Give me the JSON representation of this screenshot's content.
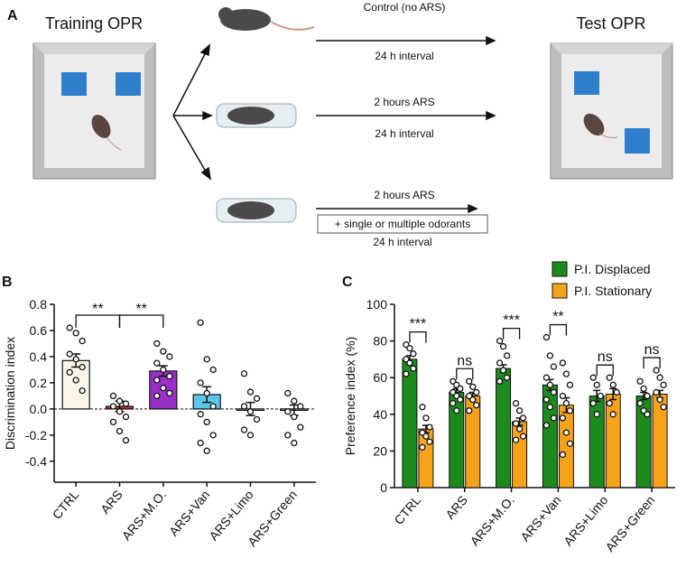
{
  "panel_a": {
    "label": "A",
    "training_title": "Training OPR",
    "test_title": "Test OPR",
    "conditions": [
      {
        "line1": "Control (no ARS)",
        "line2": "24 h interval"
      },
      {
        "line1": "2 hours ARS",
        "line2": "24 h interval"
      },
      {
        "line1": "2 hours ARS",
        "box": "+ single or multiple odorants",
        "line2": "24 h interval"
      }
    ]
  },
  "chart_data": [
    {
      "type": "bar",
      "panel_label": "B",
      "ylabel": "Discrimination index",
      "categories": [
        "CTRL",
        "ARS",
        "ARS+M.O.",
        "ARS+Van",
        "ARS+Limo",
        "ARS+Green"
      ],
      "values": [
        0.37,
        0.02,
        0.29,
        0.11,
        0.0,
        -0.01
      ],
      "errors": [
        0.05,
        0.04,
        0.04,
        0.06,
        0.05,
        0.04
      ],
      "colors": [
        "#fbf5e8",
        "#c0392b",
        "#9b30c8",
        "#5cc6ea",
        "#ffffff",
        "#ffffff"
      ],
      "points": [
        [
          0.62,
          0.58,
          0.52,
          0.42,
          0.38,
          0.32,
          0.28,
          0.22,
          0.14
        ],
        [
          0.1,
          0.06,
          0.04,
          0.02,
          -0.02,
          -0.06,
          -0.1,
          -0.17,
          -0.24
        ],
        [
          0.5,
          0.44,
          0.4,
          0.35,
          0.3,
          0.25,
          0.22,
          0.16,
          0.12,
          0.1
        ],
        [
          0.66,
          0.38,
          0.3,
          0.2,
          0.12,
          0.02,
          -0.04,
          -0.1,
          -0.2,
          -0.26,
          -0.32
        ],
        [
          0.27,
          0.13,
          0.08,
          0.02,
          -0.02,
          -0.08,
          -0.16,
          -0.2
        ],
        [
          0.12,
          0.06,
          0.02,
          -0.02,
          -0.06,
          -0.14,
          -0.2,
          -0.26
        ]
      ],
      "comparisons": [
        {
          "groups": [
            0,
            1
          ],
          "label": "**"
        },
        {
          "groups": [
            1,
            2
          ],
          "label": "**"
        }
      ],
      "ylim": [
        -0.56,
        0.8
      ],
      "yticks": [
        -0.4,
        -0.2,
        {
          "value": 0,
          "label": "0.0"
        },
        0.2,
        0.4,
        0.6,
        0.8
      ],
      "zero_line": true
    },
    {
      "type": "grouped_bar",
      "panel_label": "C",
      "ylabel": "Preference index (%)",
      "categories": [
        "CTRL",
        "ARS",
        "ARS+M.O.",
        "ARS+Van",
        "ARS+Limo",
        "ARS+Green"
      ],
      "series": [
        {
          "name": "P.I. Displaced",
          "color": "#1d8a1d",
          "values": [
            70,
            52,
            65,
            56,
            50,
            50
          ],
          "errors": [
            2,
            2,
            2,
            3,
            3,
            2
          ],
          "points": [
            [
              78,
              76,
              73,
              70,
              68,
              65,
              62
            ],
            [
              58,
              56,
              54,
              52,
              50,
              48,
              46,
              42
            ],
            [
              80,
              77,
              72,
              68,
              64,
              60,
              58
            ],
            [
              82,
              72,
              66,
              60,
              56,
              52,
              48,
              44,
              38,
              34
            ],
            [
              60,
              56,
              50,
              46,
              40
            ],
            [
              58,
              54,
              50,
              46,
              42,
              40
            ]
          ]
        },
        {
          "name": "P.I. Stationary",
          "color": "#f7a21b",
          "values": [
            32,
            50,
            36,
            45,
            51,
            51
          ],
          "errors": [
            2,
            2,
            2,
            4,
            3,
            2
          ],
          "points": [
            [
              44,
              38,
              33,
              30,
              28,
              25,
              22
            ],
            [
              58,
              55,
              52,
              50,
              48,
              45,
              42
            ],
            [
              46,
              42,
              38,
              35,
              32,
              28,
              26
            ],
            [
              68,
              62,
              56,
              50,
              46,
              42,
              38,
              30,
              24,
              18
            ],
            [
              60,
              56,
              52,
              46,
              40
            ],
            [
              64,
              60,
              56,
              52,
              48,
              44
            ]
          ]
        }
      ],
      "sig_labels": [
        "***",
        "ns",
        "***",
        "**",
        "ns",
        "ns"
      ],
      "ylim": [
        0,
        100
      ],
      "yticks": [
        0,
        20,
        40,
        60,
        80,
        100
      ]
    }
  ]
}
